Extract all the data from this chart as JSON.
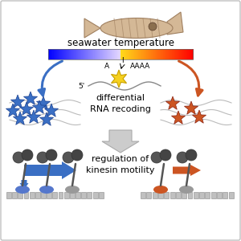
{
  "background_color": "#ffffff",
  "border_color": "#c0c0c0",
  "seawater_text": "seawater temperature",
  "seawater_fontsize": 8.5,
  "differential_text": "differential\nRNA recoding",
  "differential_fontsize": 8,
  "kinesin_text": "regulation of\nkinesin motility",
  "kinesin_fontsize": 8,
  "blue_color": "#3a6fc4",
  "orange_color": "#cc5522",
  "squid_color": "#d4b896",
  "squid_edge": "#a08060",
  "track_color": "#bbbbbb",
  "track_edge": "#888888",
  "gray_arrow_fill": "#cccccc",
  "gray_arrow_edge": "#aaaaaa",
  "kinesin_dark": "#555555",
  "kinesin_head": "#444444",
  "star_yellow": "#f5d020",
  "star_yellow_edge": "#c8a000",
  "mRNA_color": "#888888",
  "wave_color": "#aaaaaa"
}
